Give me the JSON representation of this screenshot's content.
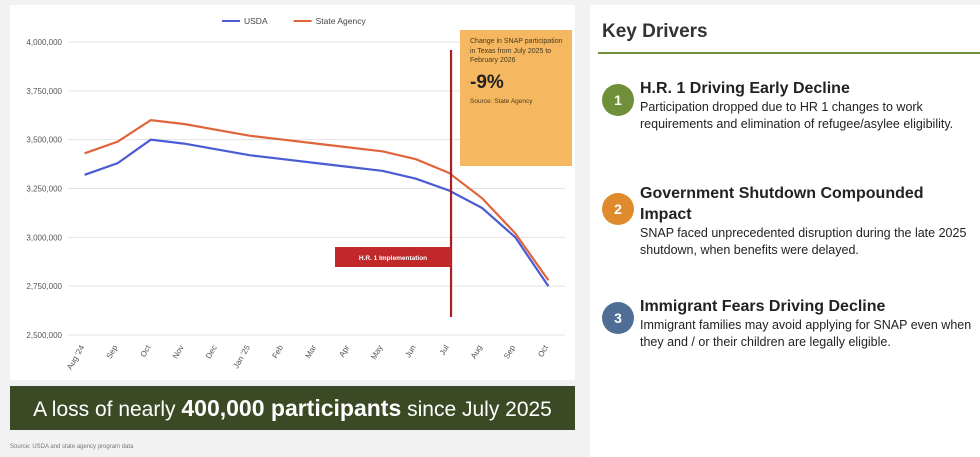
{
  "chart_data": {
    "type": "line",
    "categories": [
      "Aug '24",
      "Sep",
      "Oct",
      "Nov",
      "Dec",
      "Jan '25",
      "Feb",
      "Mar",
      "Apr",
      "May",
      "Jun",
      "Jul",
      "Aug",
      "Sep",
      "Oct"
    ],
    "series": [
      {
        "name": "USDA",
        "color": "#4a5bd4",
        "values": [
          3320000,
          3380000,
          3500000,
          3480000,
          3450000,
          3420000,
          3400000,
          3380000,
          3360000,
          3340000,
          3300000,
          3240000,
          3150000,
          3000000,
          2750000
        ]
      },
      {
        "name": "State Agency",
        "color": "#e0643a",
        "values": [
          3430000,
          3490000,
          3600000,
          3580000,
          3550000,
          3520000,
          3500000,
          3480000,
          3460000,
          3440000,
          3400000,
          3330000,
          3200000,
          3020000,
          2780000
        ]
      }
    ],
    "ylim": [
      2500000,
      4000000
    ],
    "yticks": [
      {
        "value": 2500000,
        "label": "2,500,000"
      },
      {
        "value": 2750000,
        "label": "2,750,000"
      },
      {
        "value": 3000000,
        "label": "3,000,000"
      },
      {
        "value": 3250000,
        "label": "3,250,000"
      },
      {
        "value": 3500000,
        "label": "3,500,000"
      },
      {
        "value": 3750000,
        "label": "3,750,000"
      },
      {
        "value": 4000000,
        "label": "4,000,000"
      }
    ],
    "grid": true,
    "legend": "top",
    "callout": {
      "text": "Change in SNAP participation in Texas from July 2025 to February 2026",
      "value": "-9%",
      "source": "Source: State Agency"
    },
    "marker_label": "H.R. 1 Implementation"
  },
  "banner": {
    "before": "A loss of nearly",
    "bold": "400,000 participants",
    "after": "since July 2025"
  },
  "source": "Source: USDA and state agency program data",
  "panel": {
    "title": "Key Drivers",
    "items": [
      {
        "number": "1",
        "title": "H.R. 1 Driving Early Decline",
        "text": "Participation dropped due to HR 1 changes to work requirements and elimination of refugee/asylee eligibility."
      },
      {
        "number": "2",
        "title": "Government Shutdown Compounded Impact",
        "text": "SNAP faced unprecedented disruption during the late 2025 shutdown, when benefits were delayed."
      },
      {
        "number": "3",
        "title": "Immigrant Fears Driving Decline",
        "text": "Immigrant families may avoid applying for SNAP even when they and / or their children are legally eligible."
      }
    ]
  }
}
